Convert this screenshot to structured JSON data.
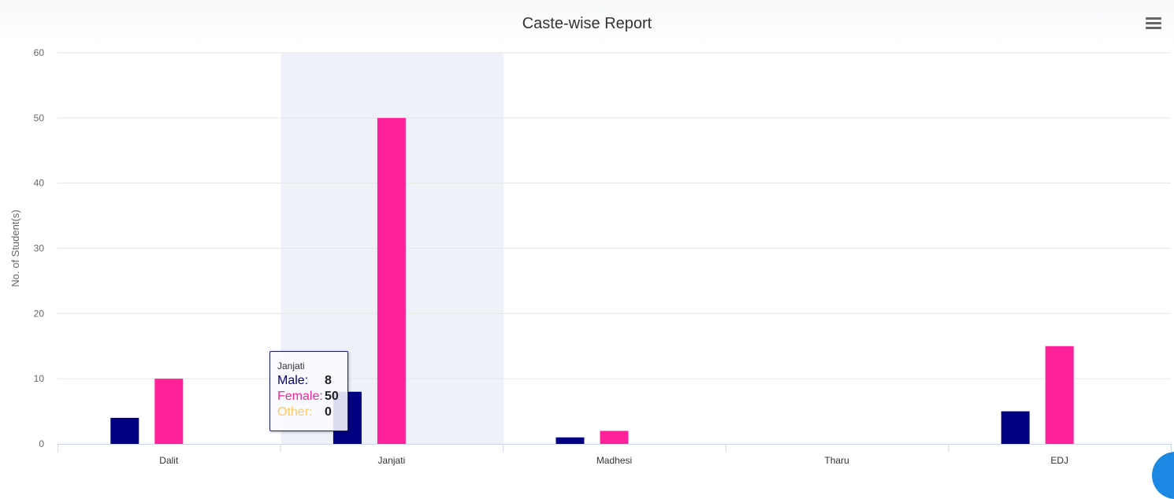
{
  "colors": {
    "male": "#000080",
    "female": "#ff2299",
    "other": "#ffc966",
    "hover_band": "#eef1f8",
    "grid": "#e6e6e6",
    "axis_text": "#666666"
  },
  "menu": {
    "icon": "hamburger-menu-icon"
  },
  "chart_data": {
    "type": "bar",
    "title": "Caste-wise Report",
    "xlabel": "",
    "ylabel": "No. of Student(s)",
    "ylim": [
      0,
      60
    ],
    "yticks": [
      0,
      10,
      20,
      30,
      40,
      50,
      60
    ],
    "grid": true,
    "categories": [
      "Dalit",
      "Janjati",
      "Madhesi",
      "Tharu",
      "EDJ"
    ],
    "series": [
      {
        "name": "Male",
        "color": "#000080",
        "values": [
          4,
          8,
          1,
          0,
          5
        ]
      },
      {
        "name": "Female",
        "color": "#ff2299",
        "values": [
          10,
          50,
          2,
          0,
          15
        ]
      },
      {
        "name": "Other",
        "color": "#ffc966",
        "values": [
          0,
          0,
          0,
          0,
          0
        ]
      }
    ],
    "hovered_category": "Janjati"
  },
  "tooltip": {
    "category": "Janjati",
    "rows": [
      {
        "label": "Male:",
        "value": "8",
        "color": "#000080"
      },
      {
        "label": "Female:",
        "value": "50",
        "color": "#ff2299"
      },
      {
        "label": "Other:",
        "value": "0",
        "color": "#ffc966"
      }
    ]
  }
}
